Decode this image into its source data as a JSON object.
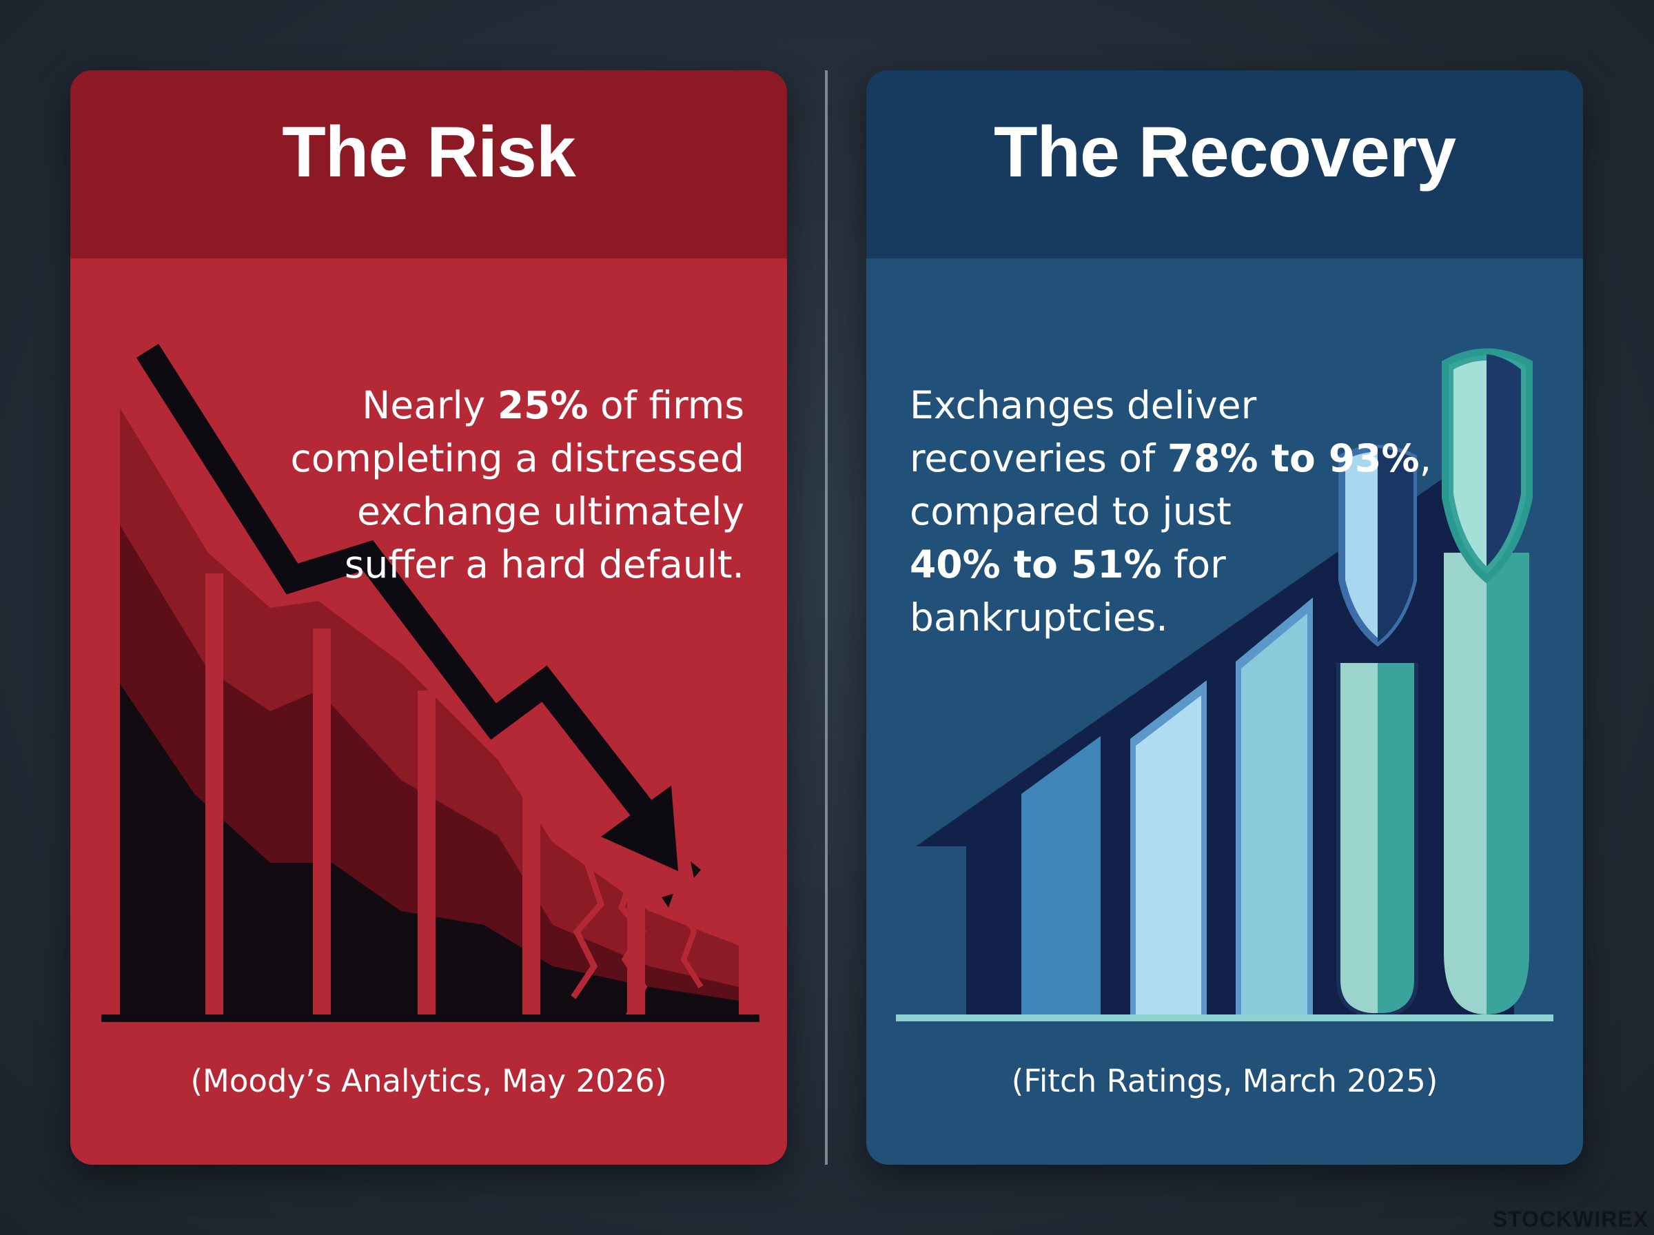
{
  "risk": {
    "title": "The Risk",
    "text_pre": "Nearly ",
    "text_bold": "25%",
    "text_line1_post": " of firms",
    "text_line2": "completing a distressed",
    "text_line3": "exchange ultimately",
    "text_line4": "suffer a hard default.",
    "source": "(Moody’s Analytics, May 2026)",
    "colors": {
      "header": "#8c1924",
      "body": "#b52836"
    },
    "illustration": "declining-bar-chart-with-downward-arrow-and-cracks"
  },
  "recovery": {
    "title": "The Recovery",
    "text_line1": "Exchanges deliver",
    "text_line2_pre": "recoveries of ",
    "text_line2_bold": "78% to 93%",
    "text_line2_post": ",",
    "text_line3": "compared to just",
    "text_line4_bold": "40% to 51%",
    "text_line4_post": " for",
    "text_line5": "bankruptcies.",
    "source": "(Fitch Ratings, March 2025)",
    "colors": {
      "header": "#163b5f",
      "body": "#215079"
    },
    "illustration": "rising-bar-chart-with-shield-bars"
  },
  "brand": "STOCKWIREX"
}
